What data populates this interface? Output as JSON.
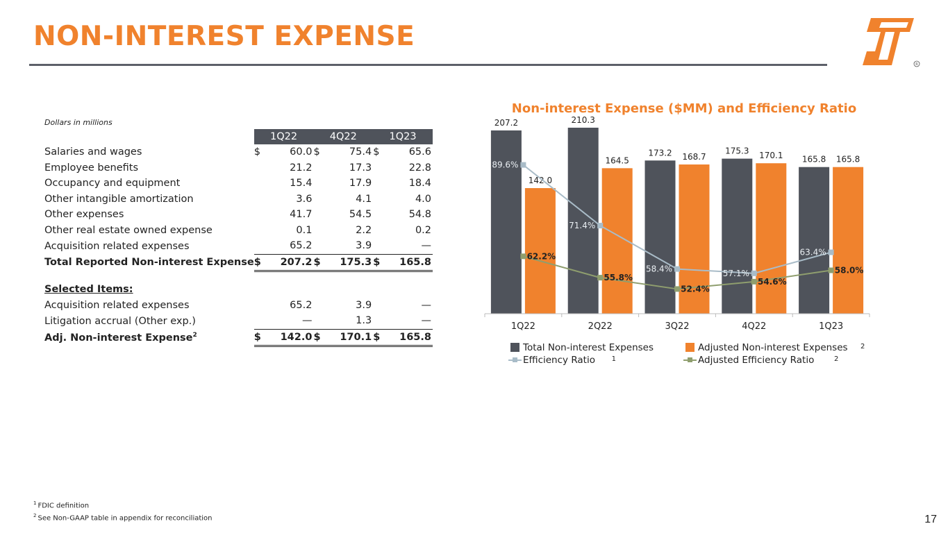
{
  "slide": {
    "title": "NON-INTEREST EXPENSE",
    "page_number": "17",
    "footnotes": [
      {
        "mark": "1",
        "text": "FDIC definition"
      },
      {
        "mark": "2",
        "text": "See Non-GAAP table in appendix for reconciliation"
      }
    ]
  },
  "table": {
    "units_note": "Dollars in millions",
    "headers": [
      "1Q22",
      "4Q22",
      "1Q23"
    ],
    "rows": [
      {
        "label": "Salaries and wages",
        "cur": [
          "$",
          "$",
          "$"
        ],
        "values": [
          "60.0",
          "75.4",
          "65.6"
        ]
      },
      {
        "label": "Employee benefits",
        "cur": [
          "",
          "",
          ""
        ],
        "values": [
          "21.2",
          "17.3",
          "22.8"
        ]
      },
      {
        "label": "Occupancy and equipment",
        "cur": [
          "",
          "",
          ""
        ],
        "values": [
          "15.4",
          "17.9",
          "18.4"
        ]
      },
      {
        "label": "Other intangible amortization",
        "cur": [
          "",
          "",
          ""
        ],
        "values": [
          "3.6",
          "4.1",
          "4.0"
        ]
      },
      {
        "label": "Other expenses",
        "cur": [
          "",
          "",
          ""
        ],
        "values": [
          "41.7",
          "54.5",
          "54.8"
        ]
      },
      {
        "label": "Other real estate owned expense",
        "cur": [
          "",
          "",
          ""
        ],
        "values": [
          "0.1",
          "2.2",
          "0.2"
        ]
      },
      {
        "label": "Acquisition related expenses",
        "cur": [
          "",
          "",
          ""
        ],
        "values": [
          "65.2",
          "3.9",
          "—"
        ]
      }
    ],
    "total": {
      "label": "Total Reported Non-interest Expense",
      "cur": [
        "$",
        "$",
        "$"
      ],
      "values": [
        "207.2",
        "175.3",
        "165.8"
      ]
    },
    "selected_header": "Selected Items:",
    "selected_rows": [
      {
        "label": "Acquisition related expenses",
        "cur": [
          "",
          "",
          ""
        ],
        "values": [
          "65.2",
          "3.9",
          "—"
        ]
      },
      {
        "label": "Litigation accrual (Other exp.)",
        "cur": [
          "",
          "",
          ""
        ],
        "values": [
          "—",
          "1.3",
          "—"
        ]
      }
    ],
    "adjusted": {
      "label": "Adj. Non-interest Expense",
      "sup": "2",
      "cur": [
        "$",
        "$",
        "$"
      ],
      "values": [
        "142.0",
        "170.1",
        "165.8"
      ]
    }
  },
  "colors": {
    "orange": "#f0822d",
    "dark_gray": "#4f535b",
    "light_blue_gray": "#a9bcc8",
    "olive_green": "#8f9e6e"
  },
  "chart_data": {
    "type": "bar",
    "title": "Non-interest Expense ($MM) and Efficiency Ratio",
    "categories": [
      "1Q22",
      "2Q22",
      "3Q22",
      "4Q22",
      "1Q23"
    ],
    "series": [
      {
        "name": "Total Non-interest Expenses",
        "kind": "bar",
        "color": "#4f535b",
        "values": [
          207.2,
          210.3,
          173.2,
          175.3,
          165.8
        ],
        "labels": [
          "207.2",
          "210.3",
          "173.2",
          "175.3",
          "165.8"
        ]
      },
      {
        "name": "Adjusted Non-interest Expenses",
        "legend_sup": "2",
        "kind": "bar",
        "color": "#f0822d",
        "values": [
          142.0,
          164.5,
          168.7,
          170.1,
          165.8
        ],
        "labels": [
          "142.0",
          "164.5",
          "168.7",
          "170.1",
          "165.8"
        ]
      },
      {
        "name": "Efficiency Ratio",
        "legend_sup": "1",
        "kind": "line",
        "axis": "secondary",
        "color": "#a9bcc8",
        "values": [
          89.6,
          71.4,
          58.4,
          57.1,
          63.4
        ],
        "labels": [
          "89.6%",
          "71.4%",
          "58.4%",
          "57.1%",
          "63.4%"
        ]
      },
      {
        "name": "Adjusted Efficiency Ratio",
        "legend_sup": "2",
        "kind": "line",
        "axis": "secondary",
        "color": "#8f9e6e",
        "values": [
          62.2,
          55.8,
          52.4,
          54.6,
          58.0
        ],
        "labels": [
          "62.2%",
          "55.8%",
          "52.4%",
          "54.6%",
          "58.0%"
        ]
      }
    ],
    "ylim": [
      0,
      215
    ],
    "y2lim": [
      45,
      102
    ],
    "legend_position": "bottom",
    "grid": false
  }
}
